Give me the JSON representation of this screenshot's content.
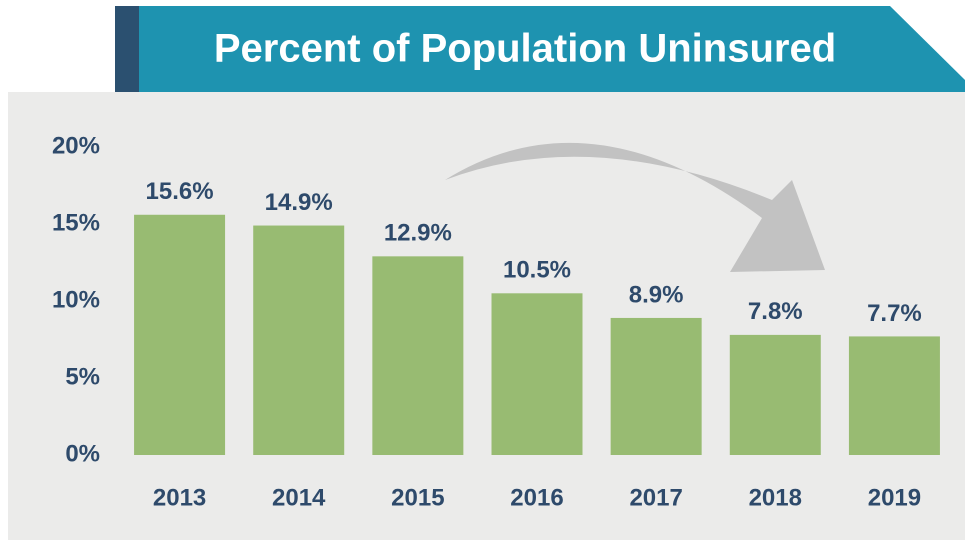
{
  "chart_data": {
    "type": "bar",
    "title": "Percent of Population Uninsured",
    "categories": [
      "2013",
      "2014",
      "2015",
      "2016",
      "2017",
      "2018",
      "2019"
    ],
    "values": [
      15.6,
      14.9,
      12.9,
      10.5,
      8.9,
      7.8,
      7.7
    ],
    "value_labels": [
      "15.6%",
      "14.9%",
      "12.9%",
      "10.5%",
      "8.9%",
      "7.8%",
      "7.7%"
    ],
    "color": "#98bb72",
    "ylim": [
      0,
      20
    ],
    "yticks": [
      {
        "value": 0,
        "label": "0%"
      },
      {
        "value": 5,
        "label": "5%"
      },
      {
        "value": 10,
        "label": "10%"
      },
      {
        "value": 15,
        "label": "15%"
      },
      {
        "value": 20,
        "label": "20%"
      }
    ],
    "grid": false
  }
}
